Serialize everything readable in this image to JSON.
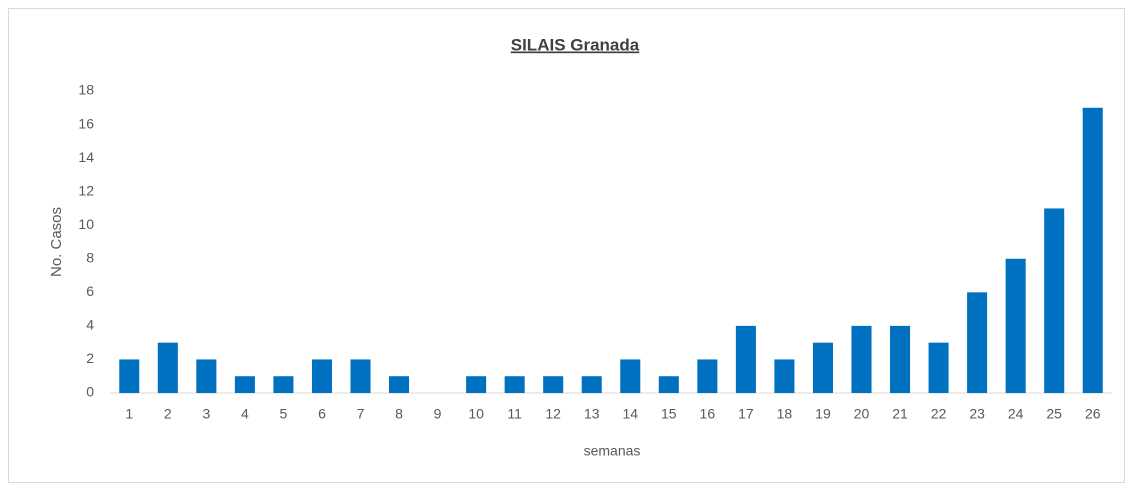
{
  "chart_data": {
    "type": "bar",
    "title": "SILAIS Granada",
    "x_label": "semanas",
    "y_label": "No. Casos",
    "categories": [
      "1",
      "2",
      "3",
      "4",
      "5",
      "6",
      "7",
      "8",
      "9",
      "10",
      "11",
      "12",
      "13",
      "14",
      "15",
      "16",
      "17",
      "18",
      "19",
      "20",
      "21",
      "22",
      "23",
      "24",
      "25",
      "26"
    ],
    "values": [
      2,
      3,
      2,
      1,
      1,
      2,
      2,
      1,
      0,
      1,
      1,
      1,
      1,
      2,
      1,
      2,
      4,
      2,
      3,
      4,
      4,
      3,
      6,
      8,
      11,
      17
    ],
    "color": "#0070c0",
    "ylim": [
      0,
      18
    ],
    "yticks": [
      0,
      2,
      4,
      6,
      8,
      10,
      12,
      14,
      16,
      18
    ],
    "grid": false
  }
}
